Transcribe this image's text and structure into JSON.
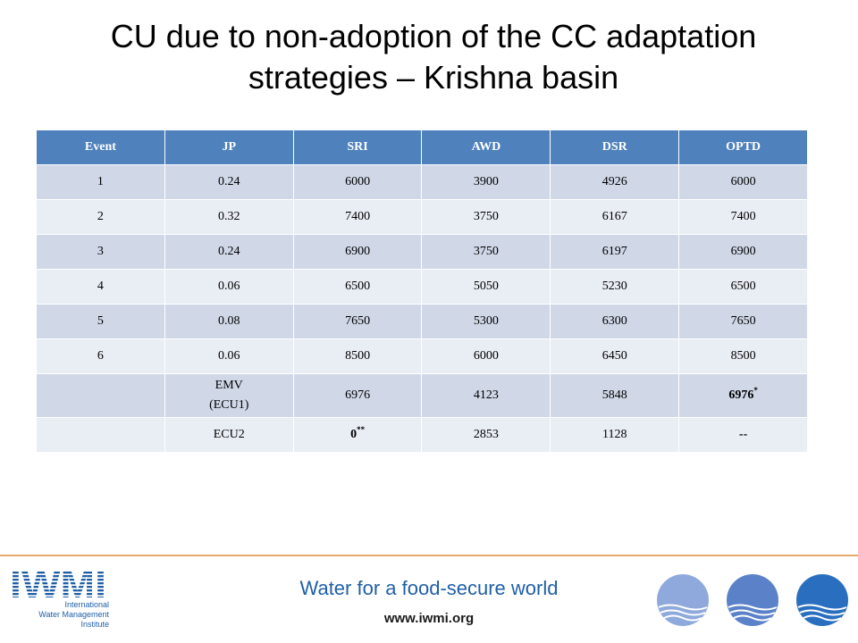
{
  "title": {
    "line1": "CU due to non-adoption of the CC adaptation",
    "line2": "strategies – Krishna basin"
  },
  "table": {
    "headers": [
      "Event",
      "JP",
      "SRI",
      "AWD",
      "DSR",
      "OPTD"
    ],
    "rows": [
      [
        "1",
        "0.24",
        "6000",
        "3900",
        "4926",
        "6000"
      ],
      [
        "2",
        "0.32",
        "7400",
        "3750",
        "6167",
        "7400"
      ],
      [
        "3",
        "0.24",
        "6900",
        "3750",
        "6197",
        "6900"
      ],
      [
        "4",
        "0.06",
        "6500",
        "5050",
        "5230",
        "6500"
      ],
      [
        "5",
        "0.08",
        "7650",
        "5300",
        "6300",
        "7650"
      ],
      [
        "6",
        "0.06",
        "8500",
        "6000",
        "6450",
        "8500"
      ]
    ],
    "emv": {
      "event": "",
      "label_line1": "EMV",
      "label_line2": "(ECU1)",
      "sri": "6976",
      "awd": "4123",
      "dsr": "5848",
      "optd": "6976",
      "optd_mark": "*"
    },
    "ecu2": {
      "event": "",
      "label": "ECU2",
      "sri": "0",
      "sri_mark": "**",
      "awd": "2853",
      "dsr": "1128",
      "optd": "--"
    }
  },
  "footer": {
    "tagline": "Water for a food-secure world",
    "url": "www.iwmi.org",
    "logo_mark": "IWMI",
    "logo_lines": [
      "International",
      "Water Management",
      "Institute"
    ],
    "circle_colors": [
      "#8fa9dc",
      "#5b82c8",
      "#2a6fbf"
    ],
    "line_color": "#e3a86a"
  }
}
